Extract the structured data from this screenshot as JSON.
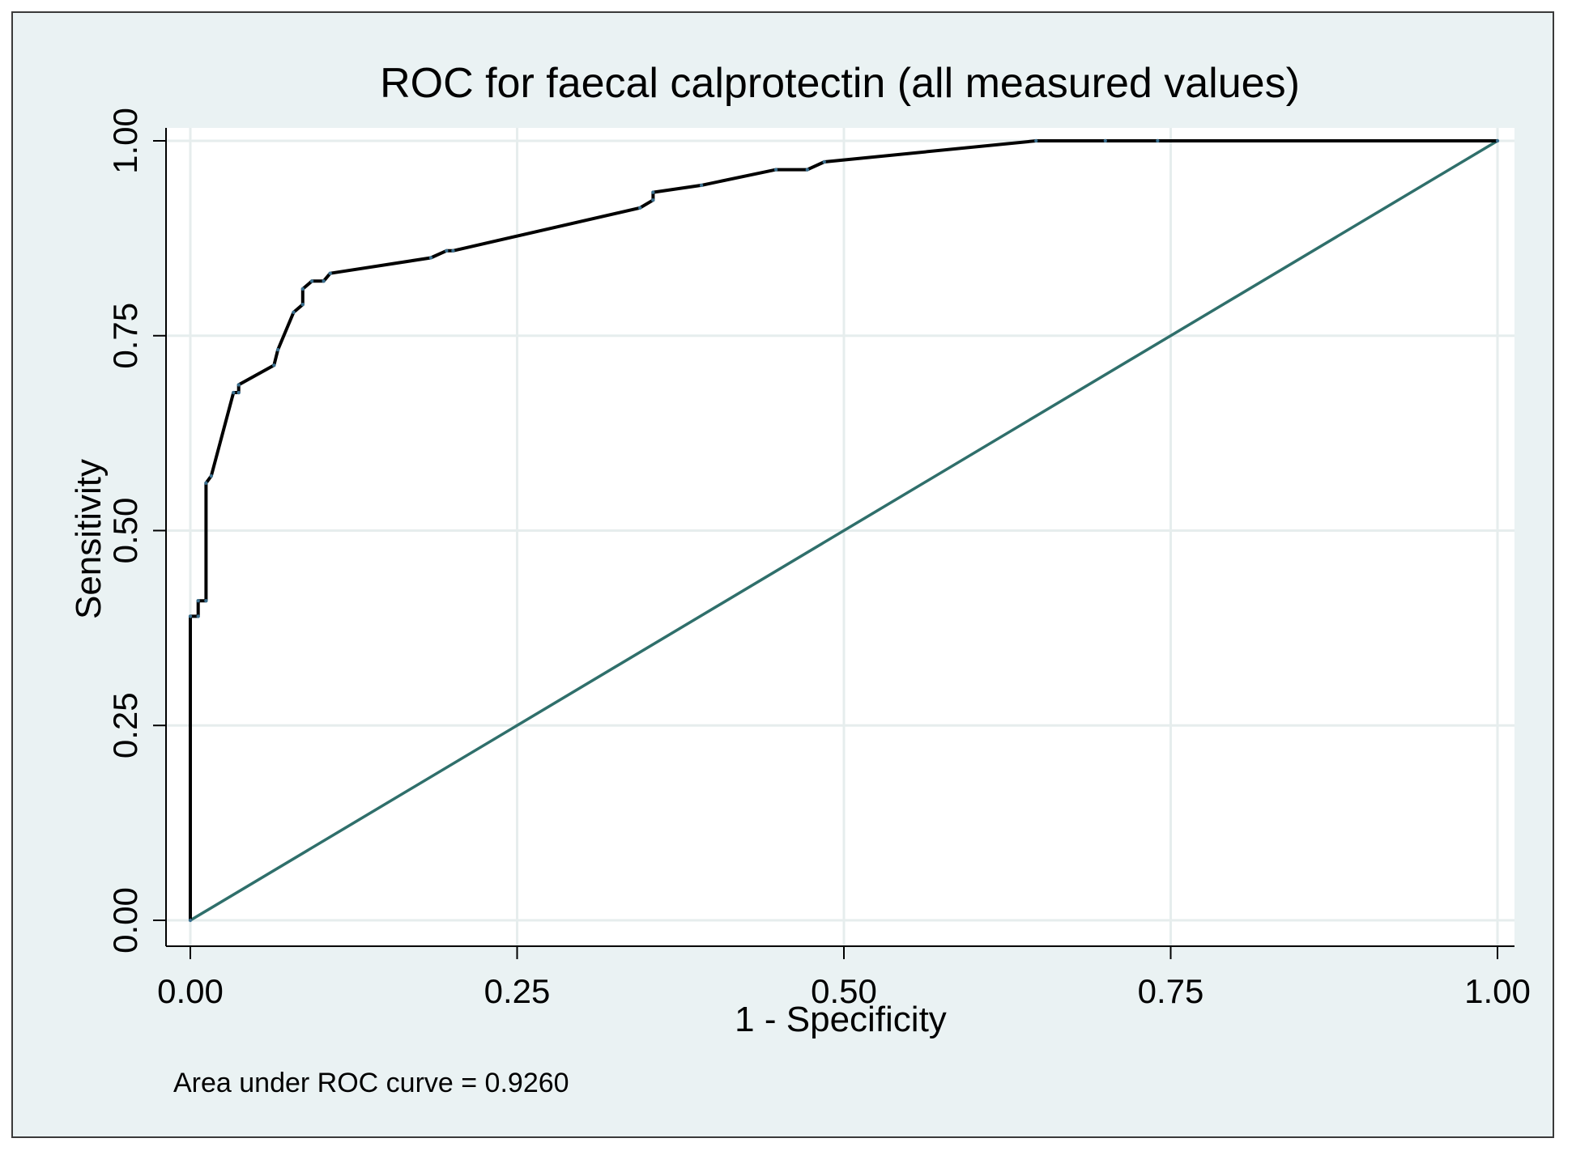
{
  "chart_data": {
    "type": "line",
    "title": "ROC for faecal calprotectin (all measured values)",
    "xlabel": "1 - Specificity",
    "ylabel": "Sensitivity",
    "xlim": [
      0,
      1
    ],
    "ylim": [
      0,
      1
    ],
    "xticks": [
      "0.00",
      "0.25",
      "0.50",
      "0.75",
      "1.00"
    ],
    "yticks": [
      "0.00",
      "0.25",
      "0.50",
      "0.75",
      "1.00"
    ],
    "grid": true,
    "note": "Area under ROC curve = 0.9260",
    "colors": {
      "roc": "#000000",
      "reference": "#2f6f6b",
      "plot_bg": "#ffffff",
      "outer_bg": "#eaf2f3",
      "grid": "#e6eded"
    },
    "series": [
      {
        "name": "ROC curve",
        "x": [
          0.0,
          0.0,
          0.006,
          0.006,
          0.012,
          0.012,
          0.016,
          0.033,
          0.037,
          0.037,
          0.064,
          0.067,
          0.079,
          0.086,
          0.086,
          0.093,
          0.102,
          0.107,
          0.184,
          0.196,
          0.201,
          0.344,
          0.354,
          0.354,
          0.391,
          0.448,
          0.472,
          0.485,
          0.647,
          0.7,
          0.74,
          1.0
        ],
        "y": [
          0.0,
          0.39,
          0.39,
          0.41,
          0.41,
          0.561,
          0.57,
          0.677,
          0.677,
          0.687,
          0.712,
          0.732,
          0.78,
          0.79,
          0.81,
          0.82,
          0.82,
          0.83,
          0.85,
          0.859,
          0.859,
          0.914,
          0.924,
          0.934,
          0.943,
          0.963,
          0.963,
          0.973,
          1.0,
          1.0,
          1.0,
          1.0
        ]
      },
      {
        "name": "Reference line",
        "x": [
          0,
          1
        ],
        "y": [
          0,
          1
        ]
      }
    ]
  }
}
